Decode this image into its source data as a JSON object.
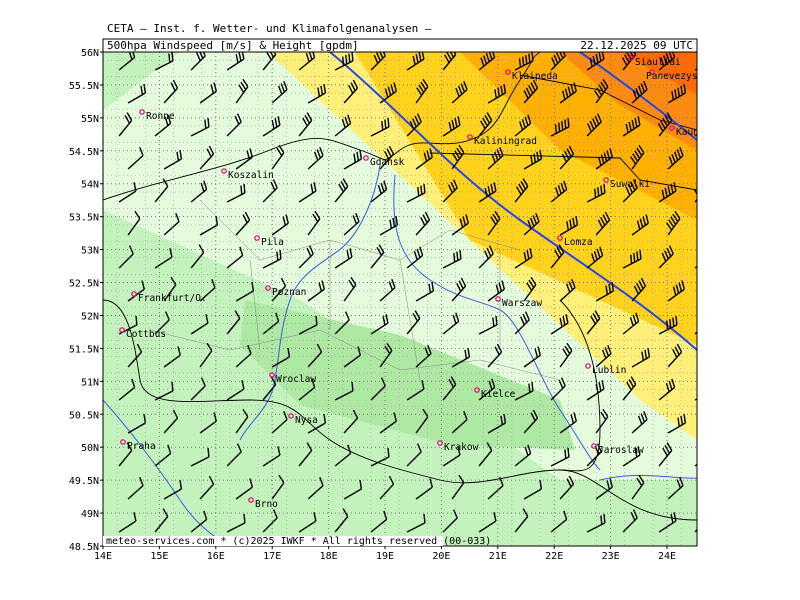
{
  "header": {
    "title": "CETA — Inst. f. Wetter- und Klimafolgenanalysen —",
    "subtitle": "500hpa Windspeed [m/s] & Height [gpdm]",
    "date": "22.12.2025 09 UTC"
  },
  "lat_labels": [
    "56N",
    "55.5N",
    "55N",
    "54.5N",
    "54N",
    "53.5N",
    "53N",
    "52.5N",
    "52N",
    "51.5N",
    "51N",
    "50.5N",
    "50N",
    "49.5N",
    "49N",
    "48.5N"
  ],
  "lon_labels": [
    "14E",
    "15E",
    "16E",
    "17E",
    "18E",
    "19E",
    "20E",
    "21E",
    "22E",
    "23E",
    "24E"
  ],
  "cities": [
    "Ronne",
    "Koszalin",
    "Gdansk",
    "Kaliningrad",
    "Klaipeda",
    "Siauliai",
    "Panevezys",
    "Kaunas",
    "Suwalki",
    "Pila",
    "Lomza",
    "Frankfurt/O.",
    "Poznan",
    "Warszaw",
    "Cottbus",
    "Wroclaw",
    "Lublin",
    "Kielce",
    "Nysa",
    "Praha",
    "Krakow",
    "Jaroslaw",
    "Brno"
  ],
  "footer": "meteo-services.com * (c)2025 IWKF * All rights reserved (00-033)"
}
